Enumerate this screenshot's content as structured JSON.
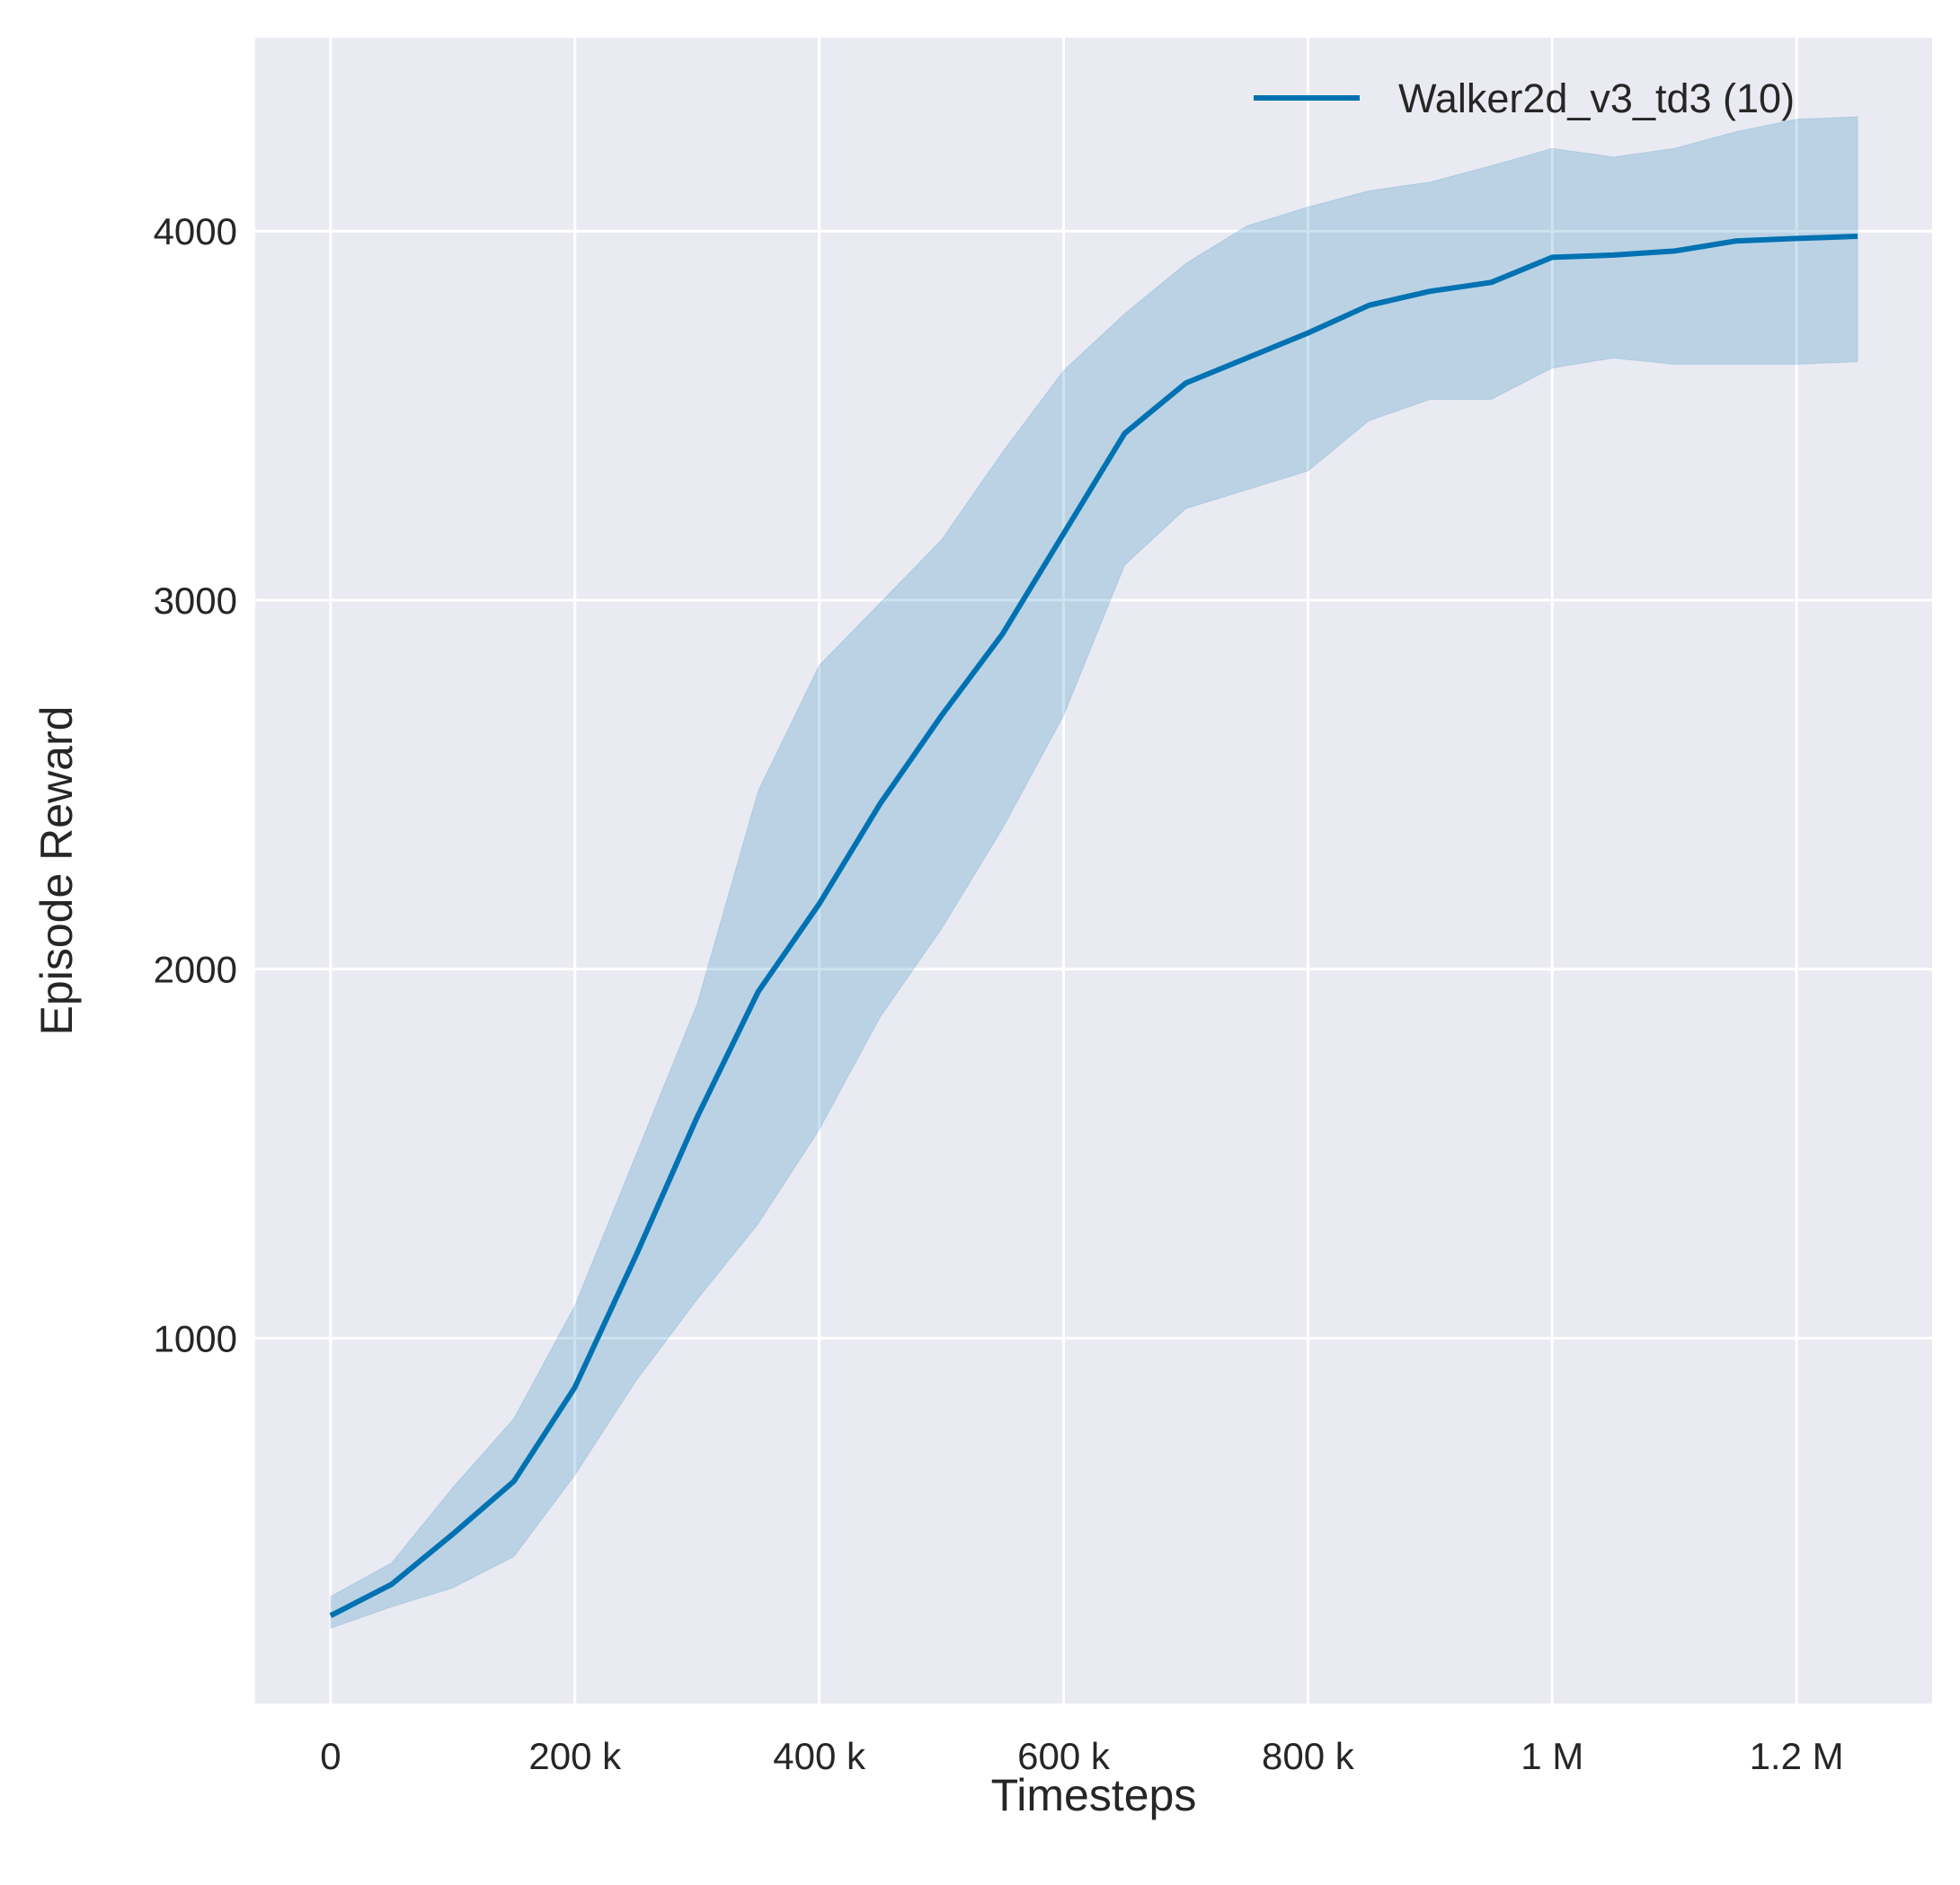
{
  "chart_data": {
    "type": "line",
    "title": "",
    "xlabel": "Timesteps",
    "ylabel": "Episode Reward",
    "xlim": [
      -61700,
      1311000
    ],
    "ylim": [
      10,
      4524
    ],
    "grid": true,
    "legend_placement": "top-right",
    "background_color": "#EAEAF2",
    "x_ticks": [
      0,
      200000,
      400000,
      600000,
      800000,
      1000000,
      1200000
    ],
    "x_tick_labels": [
      "0",
      "200 k",
      "400 k",
      "600 k",
      "800 k",
      "1 M",
      "1.2 M"
    ],
    "y_ticks": [
      1000,
      2000,
      3000,
      4000
    ],
    "y_tick_labels": [
      "1000",
      "2000",
      "3000",
      "4000"
    ],
    "x": [
      0,
      50000,
      100000,
      150000,
      200000,
      250000,
      300000,
      350000,
      400000,
      450000,
      500000,
      550000,
      600000,
      650000,
      700000,
      750000,
      800000,
      850000,
      900000,
      950000,
      1000000,
      1050000,
      1100000,
      1150000,
      1200000,
      1250000
    ],
    "series": [
      {
        "name": "Walker2d_v3_td3 (10)",
        "color": "#0072B2",
        "values": [
          248,
          333,
          469,
          612,
          867,
          1224,
          1599,
          1939,
          2177,
          2449,
          2687,
          2908,
          3180,
          3452,
          3588,
          3656,
          3724,
          3799,
          3837,
          3861,
          3929,
          3935,
          3946,
          3973,
          3980,
          3986
        ],
        "upper": [
          300,
          391,
          595,
          782,
          1088,
          1497,
          1905,
          2483,
          2823,
          2993,
          3163,
          3401,
          3622,
          3776,
          3912,
          4014,
          4065,
          4109,
          4133,
          4177,
          4224,
          4201,
          4224,
          4269,
          4303,
          4310
        ],
        "lower": [
          214,
          272,
          323,
          408,
          629,
          884,
          1105,
          1310,
          1565,
          1871,
          2109,
          2381,
          2687,
          3095,
          3248,
          3299,
          3350,
          3486,
          3544,
          3544,
          3629,
          3656,
          3639,
          3639,
          3639,
          3646
        ]
      }
    ]
  }
}
